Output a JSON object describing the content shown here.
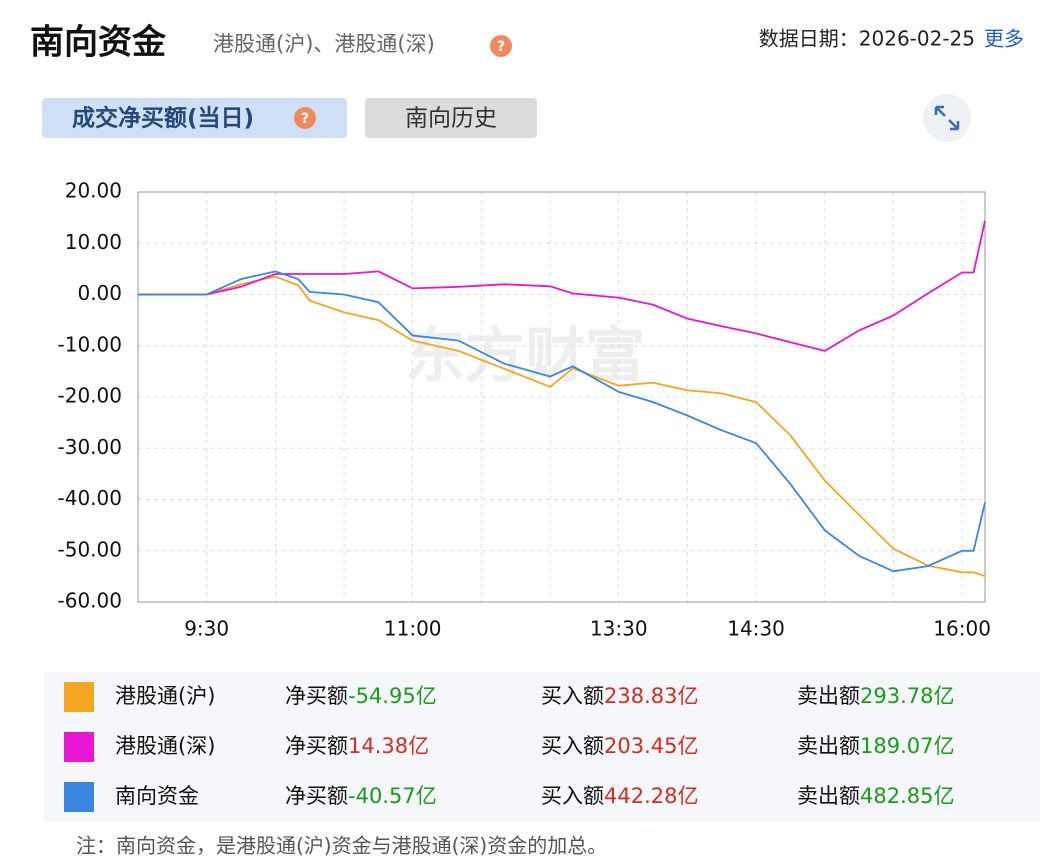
{
  "header": {
    "title": "南向资金",
    "subtitle": "港股通(沪)、港股通(深)",
    "date_label": "数据日期：2026-02-25",
    "more": "更多"
  },
  "tabs": [
    "成交净买额(当日)",
    "南向历史"
  ],
  "chart_data": {
    "type": "line",
    "watermark": "东方财富",
    "x": [
      "9:00",
      "9:30",
      "9:45",
      "10:00",
      "10:10",
      "10:15",
      "10:30",
      "10:45",
      "11:00",
      "11:20",
      "11:40",
      "12:00",
      "13:10",
      "13:30",
      "13:45",
      "14:00",
      "14:15",
      "14:30",
      "14:45",
      "15:00",
      "15:15",
      "15:30",
      "15:45",
      "16:00",
      "16:05",
      "16:10"
    ],
    "xlim": [
      "9:00",
      "16:10"
    ],
    "xticks": [
      "9:30",
      "11:00",
      "13:30",
      "14:30",
      "16:00"
    ],
    "xgrid": [
      "9:30",
      "10:00",
      "10:30",
      "11:00",
      "11:30",
      "12:00",
      "13:30",
      "14:00",
      "14:30",
      "15:00",
      "15:30",
      "16:00"
    ],
    "ylim": [
      -60,
      20
    ],
    "yticks": [
      {
        "value": 20,
        "label": "20.00"
      },
      {
        "value": 10,
        "label": "10.00"
      },
      {
        "value": 0,
        "label": "0.00"
      },
      {
        "value": -10,
        "label": "-10.00"
      },
      {
        "value": -20,
        "label": "-20.00"
      },
      {
        "value": -30,
        "label": "-30.00"
      },
      {
        "value": -40,
        "label": "-40.00"
      },
      {
        "value": -50,
        "label": "-50.00"
      },
      {
        "value": -60,
        "label": "-60.00"
      }
    ],
    "grid": true,
    "series": [
      {
        "name": "港股通(沪)",
        "color": "#f5a623",
        "values": [
          0,
          0,
          2,
          3.5,
          1.8,
          -1.2,
          -3.5,
          -5,
          -9,
          -11,
          -14.5,
          -18,
          -14.4,
          -17.8,
          -17.2,
          -18.7,
          -19.3,
          -21,
          -27.5,
          -36.3,
          -43,
          -49.6,
          -52.9,
          -54.2,
          -54.2,
          -54.95
        ],
        "net": "-54.95亿",
        "buy": "238.83亿",
        "sell": "293.78亿"
      },
      {
        "name": "港股通(深)",
        "color": "#e815d5",
        "values": [
          0,
          0,
          1.5,
          4,
          4,
          4,
          4,
          4.5,
          1.2,
          1.5,
          2,
          1.6,
          0.2,
          -0.6,
          -2,
          -4.7,
          -6.2,
          -7.6,
          -9.3,
          -11,
          -7,
          -4.1,
          0.2,
          4.3,
          4.3,
          14.38
        ],
        "net": "14.38亿",
        "buy": "203.45亿",
        "sell": "189.07亿"
      },
      {
        "name": "南向资金",
        "color": "#3a86e0",
        "values": [
          0,
          0,
          3,
          4.5,
          3,
          0.5,
          0,
          -1.5,
          -8,
          -9,
          -13.5,
          -16,
          -14,
          -19,
          -21,
          -23.6,
          -26.5,
          -29,
          -37,
          -46,
          -51,
          -54,
          -53,
          -50,
          -50,
          -40.57
        ],
        "net": "-40.57亿",
        "buy": "442.28亿",
        "sell": "482.85亿"
      }
    ],
    "legend_labels": {
      "net": "净买额",
      "buy": "买入额",
      "sell": "卖出额"
    }
  },
  "note": "注：南向资金，是港股通(沪)资金与港股通(深)资金的加总。"
}
